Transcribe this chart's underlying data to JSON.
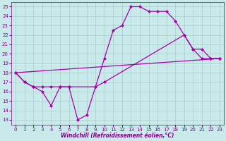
{
  "line1_x": [
    0,
    1,
    2,
    3,
    4,
    5,
    6,
    7,
    8,
    9,
    10,
    11,
    12,
    13,
    14,
    15,
    16,
    17,
    18,
    19,
    20,
    21,
    22,
    23
  ],
  "line1_y": [
    18,
    17,
    16.5,
    16,
    14.5,
    16.5,
    16.5,
    13,
    13.5,
    16.5,
    19.5,
    22.5,
    23,
    25,
    25,
    24.5,
    24.5,
    24.5,
    23.5,
    22,
    20.5,
    19.5,
    19.5,
    19.5
  ],
  "line2_x": [
    0,
    1,
    2,
    3,
    4,
    5,
    6,
    9,
    10,
    19,
    20,
    21,
    22,
    23
  ],
  "line2_y": [
    18,
    17,
    16.5,
    16.5,
    16.5,
    16.5,
    16.5,
    16.5,
    17,
    22,
    20.5,
    20.5,
    19.5,
    19.5
  ],
  "line3_x": [
    0,
    23
  ],
  "line3_y": [
    18,
    19.5
  ],
  "color": "#aa00aa",
  "bg_color": "#c8eaea",
  "grid_color": "#b0d0cc",
  "ylabel_ticks": [
    13,
    14,
    15,
    16,
    17,
    18,
    19,
    20,
    21,
    22,
    23,
    24,
    25
  ],
  "xlabel_ticks": [
    0,
    1,
    2,
    3,
    4,
    5,
    6,
    7,
    8,
    9,
    10,
    11,
    12,
    13,
    14,
    15,
    16,
    17,
    18,
    19,
    20,
    21,
    22,
    23
  ],
  "xlim": [
    -0.5,
    23.5
  ],
  "ylim": [
    12.5,
    25.5
  ],
  "xlabel": "Windchill (Refroidissement éolien,°C)"
}
